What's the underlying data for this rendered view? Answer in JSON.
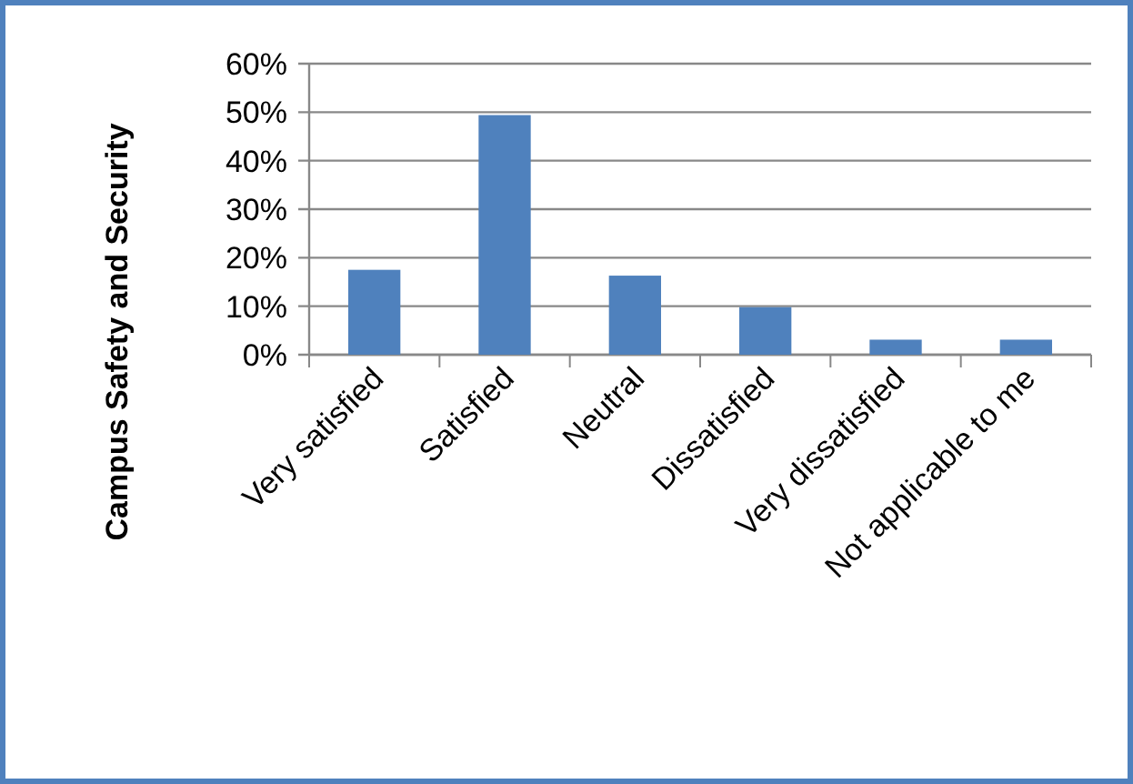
{
  "chart_data": {
    "type": "bar",
    "ylabel": "Campus Safety and Security",
    "categories": [
      "Very satisfied",
      "Satisfied",
      "Neutral",
      "Dissatisfied",
      "Very dissatisfied",
      "Not applicable to me"
    ],
    "values": [
      17.5,
      49.4,
      16.3,
      9.8,
      3.1,
      3.1
    ],
    "color": "#4f81bd",
    "ylim": [
      0,
      60
    ],
    "yticks": [
      {
        "value": 0,
        "label": "0%"
      },
      {
        "value": 10,
        "label": "10%"
      },
      {
        "value": 20,
        "label": "20%"
      },
      {
        "value": 30,
        "label": "30%"
      },
      {
        "value": 40,
        "label": "40%"
      },
      {
        "value": 50,
        "label": "50%"
      },
      {
        "value": 60,
        "label": "60%"
      }
    ],
    "grid": "y"
  }
}
